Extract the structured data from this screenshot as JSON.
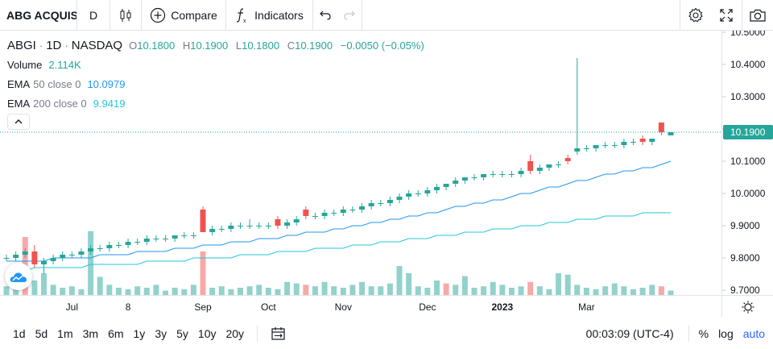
{
  "toolbar": {
    "symbol": "ABG ACQUIS",
    "interval": "D",
    "compare_label": "Compare",
    "indicators_label": "Indicators",
    "icons": [
      "candles-icon",
      "plus-circle-icon",
      "fx-icon",
      "undo-icon",
      "redo-icon",
      "gear-icon",
      "fullscreen-icon",
      "camera-icon"
    ]
  },
  "legend": {
    "ticker": "ABGI",
    "interval": "1D",
    "exchange": "NASDAQ",
    "o_label": "O",
    "o": "10.1800",
    "h_label": "H",
    "h": "10.1900",
    "l_label": "L",
    "l": "10.1800",
    "c_label": "C",
    "c": "10.1900",
    "change": "−0.0050 (−0.05%)",
    "volume_label": "Volume",
    "volume": "2.114K",
    "ema50_label": "EMA",
    "ema50_params": "50 close 0",
    "ema50_value": "10.0979",
    "ema200_label": "EMA",
    "ema200_params": "200 close 0",
    "ema200_value": "9.9419"
  },
  "price_axis": {
    "ticks": [
      "10.5000",
      "10.4000",
      "10.3000",
      "10.2000",
      "10.1000",
      "10.0000",
      "9.9000",
      "9.8000",
      "9.7000"
    ],
    "last_price": "10.1900"
  },
  "time_axis": {
    "ticks": [
      "Jul",
      "8",
      "Sep",
      "Oct",
      "Nov",
      "Dec",
      "2023",
      "Mar"
    ]
  },
  "bottom_bar": {
    "ranges": [
      "1d",
      "5d",
      "1m",
      "3m",
      "6m",
      "1y",
      "3y",
      "5y",
      "10y",
      "20y"
    ],
    "time": "00:03:09 (UTC-4)",
    "percent_label": "%",
    "log_label": "log",
    "auto_label": "auto"
  },
  "colors": {
    "up": "#26a69a",
    "down": "#ef5350",
    "ema50": "#2196f3",
    "ema200": "#26c6da",
    "price_label_bg": "#26a69a",
    "accent": "#2962ff"
  },
  "chart_data": {
    "type": "candlestick",
    "ylim": [
      9.7,
      10.5
    ],
    "x_ticks": [
      "Jul",
      "8",
      "Sep",
      "Oct",
      "Nov",
      "Dec",
      "2023",
      "Mar"
    ],
    "last_price": 10.19,
    "candles": [
      {
        "o": 9.8,
        "h": 9.81,
        "l": 9.79,
        "c": 9.8
      },
      {
        "o": 9.8,
        "h": 9.82,
        "l": 9.79,
        "c": 9.81
      },
      {
        "o": 9.81,
        "h": 9.83,
        "l": 9.8,
        "c": 9.82
      },
      {
        "o": 9.82,
        "h": 9.84,
        "l": 9.77,
        "c": 9.78
      },
      {
        "o": 9.78,
        "h": 9.8,
        "l": 9.75,
        "c": 9.79
      },
      {
        "o": 9.79,
        "h": 9.81,
        "l": 9.78,
        "c": 9.8
      },
      {
        "o": 9.8,
        "h": 9.82,
        "l": 9.79,
        "c": 9.81
      },
      {
        "o": 9.81,
        "h": 9.82,
        "l": 9.8,
        "c": 9.81
      },
      {
        "o": 9.81,
        "h": 9.83,
        "l": 9.8,
        "c": 9.82
      },
      {
        "o": 9.82,
        "h": 9.84,
        "l": 9.81,
        "c": 9.83
      },
      {
        "o": 9.83,
        "h": 9.84,
        "l": 9.82,
        "c": 9.83
      },
      {
        "o": 9.83,
        "h": 9.85,
        "l": 9.82,
        "c": 9.84
      },
      {
        "o": 9.84,
        "h": 9.85,
        "l": 9.83,
        "c": 9.84
      },
      {
        "o": 9.84,
        "h": 9.86,
        "l": 9.83,
        "c": 9.85
      },
      {
        "o": 9.85,
        "h": 9.86,
        "l": 9.84,
        "c": 9.85
      },
      {
        "o": 9.85,
        "h": 9.87,
        "l": 9.84,
        "c": 9.86
      },
      {
        "o": 9.86,
        "h": 9.87,
        "l": 9.85,
        "c": 9.86
      },
      {
        "o": 9.86,
        "h": 9.87,
        "l": 9.85,
        "c": 9.86
      },
      {
        "o": 9.86,
        "h": 9.87,
        "l": 9.85,
        "c": 9.87
      },
      {
        "o": 9.87,
        "h": 9.88,
        "l": 9.86,
        "c": 9.87
      },
      {
        "o": 9.87,
        "h": 9.88,
        "l": 9.86,
        "c": 9.87
      },
      {
        "o": 9.95,
        "h": 9.96,
        "l": 9.88,
        "c": 9.88
      },
      {
        "o": 9.88,
        "h": 9.9,
        "l": 9.87,
        "c": 9.89
      },
      {
        "o": 9.89,
        "h": 9.9,
        "l": 9.88,
        "c": 9.89
      },
      {
        "o": 9.89,
        "h": 9.91,
        "l": 9.88,
        "c": 9.9
      },
      {
        "o": 9.9,
        "h": 9.91,
        "l": 9.89,
        "c": 9.9
      },
      {
        "o": 9.9,
        "h": 9.92,
        "l": 9.89,
        "c": 9.9
      },
      {
        "o": 9.9,
        "h": 9.91,
        "l": 9.89,
        "c": 9.9
      },
      {
        "o": 9.9,
        "h": 9.91,
        "l": 9.89,
        "c": 9.9
      },
      {
        "o": 9.92,
        "h": 9.93,
        "l": 9.89,
        "c": 9.9
      },
      {
        "o": 9.9,
        "h": 9.92,
        "l": 9.89,
        "c": 9.91
      },
      {
        "o": 9.91,
        "h": 9.93,
        "l": 9.9,
        "c": 9.92
      },
      {
        "o": 9.95,
        "h": 9.96,
        "l": 9.92,
        "c": 9.93
      },
      {
        "o": 9.93,
        "h": 9.94,
        "l": 9.92,
        "c": 9.93
      },
      {
        "o": 9.93,
        "h": 9.95,
        "l": 9.92,
        "c": 9.94
      },
      {
        "o": 9.94,
        "h": 9.95,
        "l": 9.93,
        "c": 9.94
      },
      {
        "o": 9.94,
        "h": 9.96,
        "l": 9.93,
        "c": 9.95
      },
      {
        "o": 9.95,
        "h": 9.96,
        "l": 9.94,
        "c": 9.95
      },
      {
        "o": 9.95,
        "h": 9.97,
        "l": 9.94,
        "c": 9.96
      },
      {
        "o": 9.96,
        "h": 9.98,
        "l": 9.95,
        "c": 9.97
      },
      {
        "o": 9.97,
        "h": 9.98,
        "l": 9.96,
        "c": 9.97
      },
      {
        "o": 9.97,
        "h": 9.99,
        "l": 9.96,
        "c": 9.98
      },
      {
        "o": 9.98,
        "h": 10.0,
        "l": 9.97,
        "c": 9.99
      },
      {
        "o": 9.99,
        "h": 10.01,
        "l": 9.98,
        "c": 10.0
      },
      {
        "o": 10.0,
        "h": 10.01,
        "l": 9.99,
        "c": 10.0
      },
      {
        "o": 10.0,
        "h": 10.02,
        "l": 9.99,
        "c": 10.01
      },
      {
        "o": 10.01,
        "h": 10.03,
        "l": 10.0,
        "c": 10.02
      },
      {
        "o": 10.02,
        "h": 10.03,
        "l": 10.01,
        "c": 10.03
      },
      {
        "o": 10.03,
        "h": 10.05,
        "l": 10.02,
        "c": 10.04
      },
      {
        "o": 10.04,
        "h": 10.05,
        "l": 10.03,
        "c": 10.05
      },
      {
        "o": 10.05,
        "h": 10.06,
        "l": 10.04,
        "c": 10.05
      },
      {
        "o": 10.05,
        "h": 10.06,
        "l": 10.04,
        "c": 10.06
      },
      {
        "o": 10.06,
        "h": 10.07,
        "l": 10.05,
        "c": 10.06
      },
      {
        "o": 10.06,
        "h": 10.07,
        "l": 10.05,
        "c": 10.06
      },
      {
        "o": 10.06,
        "h": 10.07,
        "l": 10.05,
        "c": 10.06
      },
      {
        "o": 10.06,
        "h": 10.08,
        "l": 10.05,
        "c": 10.07
      },
      {
        "o": 10.1,
        "h": 10.12,
        "l": 10.06,
        "c": 10.07
      },
      {
        "o": 10.07,
        "h": 10.09,
        "l": 10.06,
        "c": 10.08
      },
      {
        "o": 10.08,
        "h": 10.09,
        "l": 10.07,
        "c": 10.09
      },
      {
        "o": 10.09,
        "h": 10.1,
        "l": 10.08,
        "c": 10.09
      },
      {
        "o": 10.11,
        "h": 10.12,
        "l": 10.09,
        "c": 10.1
      },
      {
        "o": 10.13,
        "h": 10.42,
        "l": 10.12,
        "c": 10.14
      },
      {
        "o": 10.14,
        "h": 10.15,
        "l": 10.13,
        "c": 10.14
      },
      {
        "o": 10.14,
        "h": 10.15,
        "l": 10.13,
        "c": 10.15
      },
      {
        "o": 10.15,
        "h": 10.16,
        "l": 10.14,
        "c": 10.15
      },
      {
        "o": 10.15,
        "h": 10.16,
        "l": 10.14,
        "c": 10.15
      },
      {
        "o": 10.15,
        "h": 10.17,
        "l": 10.14,
        "c": 10.16
      },
      {
        "o": 10.16,
        "h": 10.17,
        "l": 10.15,
        "c": 10.16
      },
      {
        "o": 10.17,
        "h": 10.18,
        "l": 10.15,
        "c": 10.16
      },
      {
        "o": 10.16,
        "h": 10.17,
        "l": 10.15,
        "c": 10.17
      },
      {
        "o": 10.22,
        "h": 10.22,
        "l": 10.18,
        "c": 10.19
      },
      {
        "o": 10.18,
        "h": 10.19,
        "l": 10.18,
        "c": 10.19
      }
    ],
    "volume_ylim": [
      0,
      100
    ],
    "volume": [
      12,
      25,
      80,
      20,
      30,
      14,
      10,
      12,
      8,
      88,
      25,
      14,
      10,
      8,
      12,
      10,
      14,
      6,
      10,
      8,
      14,
      60,
      10,
      12,
      8,
      10,
      12,
      14,
      10,
      8,
      18,
      16,
      14,
      12,
      18,
      12,
      10,
      14,
      18,
      12,
      12,
      16,
      40,
      30,
      12,
      10,
      20,
      16,
      14,
      26,
      10,
      12,
      18,
      14,
      10,
      12,
      18,
      12,
      8,
      30,
      28,
      14,
      10,
      8,
      12,
      16,
      12,
      8,
      10,
      14,
      12,
      6
    ],
    "volume_down": [
      false,
      false,
      true,
      false,
      false,
      false,
      false,
      false,
      false,
      false,
      false,
      false,
      false,
      false,
      false,
      false,
      false,
      false,
      false,
      false,
      false,
      true,
      false,
      false,
      false,
      false,
      false,
      false,
      false,
      false,
      false,
      false,
      true,
      false,
      false,
      false,
      false,
      false,
      false,
      false,
      false,
      false,
      false,
      false,
      false,
      false,
      false,
      true,
      false,
      false,
      false,
      false,
      false,
      false,
      false,
      false,
      true,
      false,
      false,
      false,
      false,
      false,
      false,
      false,
      false,
      false,
      false,
      false,
      false,
      false,
      true,
      false
    ],
    "ema50": [
      9.79,
      9.79,
      9.79,
      9.79,
      9.79,
      9.8,
      9.8,
      9.8,
      9.8,
      9.8,
      9.81,
      9.81,
      9.81,
      9.81,
      9.82,
      9.82,
      9.82,
      9.82,
      9.83,
      9.83,
      9.83,
      9.84,
      9.84,
      9.84,
      9.85,
      9.85,
      9.85,
      9.86,
      9.86,
      9.86,
      9.87,
      9.87,
      9.88,
      9.88,
      9.88,
      9.89,
      9.89,
      9.9,
      9.9,
      9.91,
      9.91,
      9.92,
      9.92,
      9.93,
      9.93,
      9.94,
      9.94,
      9.95,
      9.96,
      9.96,
      9.97,
      9.97,
      9.98,
      9.98,
      9.99,
      10.0,
      10.0,
      10.01,
      10.02,
      10.02,
      10.03,
      10.04,
      10.04,
      10.05,
      10.06,
      10.06,
      10.07,
      10.07,
      10.08,
      10.08,
      10.09,
      10.1
    ],
    "ema200": [
      9.76,
      9.76,
      9.76,
      9.77,
      9.77,
      9.77,
      9.77,
      9.77,
      9.77,
      9.78,
      9.78,
      9.78,
      9.78,
      9.78,
      9.78,
      9.79,
      9.79,
      9.79,
      9.79,
      9.79,
      9.8,
      9.8,
      9.8,
      9.8,
      9.8,
      9.81,
      9.81,
      9.81,
      9.81,
      9.82,
      9.82,
      9.82,
      9.82,
      9.83,
      9.83,
      9.83,
      9.83,
      9.84,
      9.84,
      9.84,
      9.85,
      9.85,
      9.85,
      9.86,
      9.86,
      9.86,
      9.87,
      9.87,
      9.87,
      9.88,
      9.88,
      9.88,
      9.89,
      9.89,
      9.89,
      9.9,
      9.9,
      9.9,
      9.91,
      9.91,
      9.91,
      9.92,
      9.92,
      9.92,
      9.93,
      9.93,
      9.93,
      9.93,
      9.94,
      9.94,
      9.94,
      9.94
    ]
  }
}
